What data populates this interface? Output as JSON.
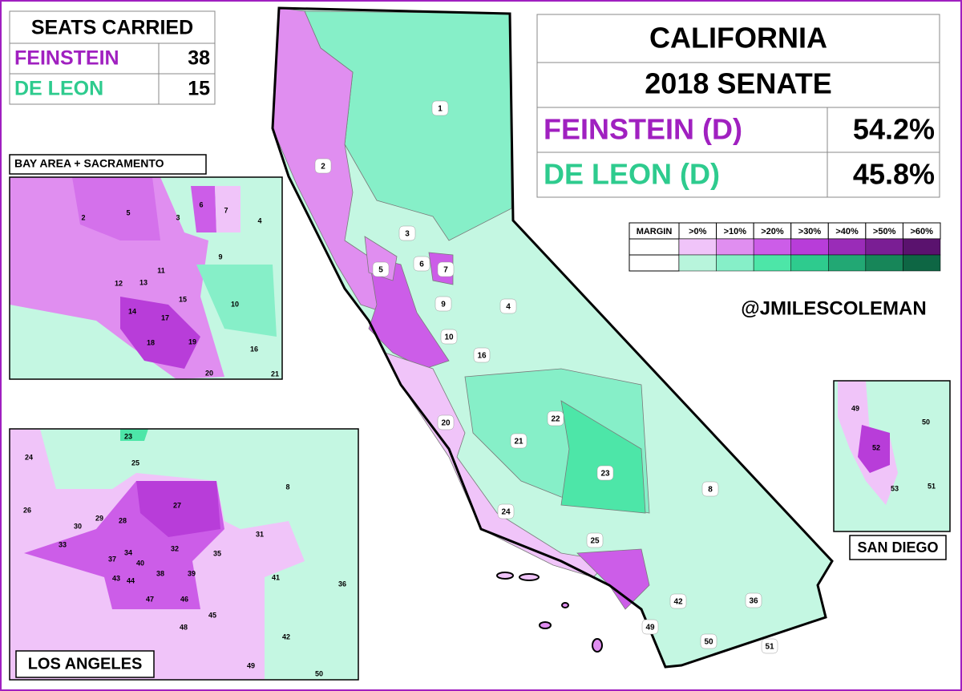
{
  "seats_table": {
    "header": "SEATS CARRIED",
    "rows": [
      [
        "FEINSTEIN",
        38
      ],
      [
        "DE LEON",
        15
      ]
    ]
  },
  "results_table": {
    "title": "CALIFORNIA",
    "subtitle": "2018 SENATE",
    "rows": [
      [
        "FEINSTEIN (D)",
        "54.2%"
      ],
      [
        "DE LEON (D)",
        "45.8%"
      ]
    ]
  },
  "legend": {
    "title": "MARGIN",
    "labels": [
      ">0%",
      ">10%",
      ">20%",
      ">30%",
      ">40%",
      ">50%",
      ">60%"
    ],
    "purple": [
      "#f0c4f9",
      "#e08ef0",
      "#cc5de8",
      "#b83dd9",
      "#9a2cb8",
      "#7a1e94",
      "#5a126e"
    ],
    "green": [
      "#b8f5dc",
      "#86efc8",
      "#4de6a8",
      "#2ecb8e",
      "#22a874",
      "#178659",
      "#0e6644"
    ]
  },
  "handle": "@JMILESCOLEMAN",
  "main_map": {
    "district_labels": [
      "1",
      "2",
      "3",
      "4",
      "5",
      "6",
      "7",
      "8",
      "9",
      "10",
      "16",
      "20",
      "21",
      "22",
      "23",
      "24",
      "25",
      "36",
      "42",
      "49",
      "50",
      "51"
    ]
  },
  "insets": [
    {
      "title": "BAY AREA + SACRAMENTO",
      "district_labels": [
        "2",
        "3",
        "4",
        "5",
        "6",
        "7",
        "9",
        "10",
        "11",
        "12",
        "13",
        "14",
        "15",
        "16",
        "17",
        "18",
        "19",
        "20",
        "21"
      ]
    },
    {
      "title": "LOS ANGELES",
      "district_labels": [
        "23",
        "24",
        "25",
        "26",
        "27",
        "28",
        "29",
        "30",
        "31",
        "32",
        "33",
        "34",
        "35",
        "36",
        "37",
        "38",
        "39",
        "40",
        "41",
        "42",
        "43",
        "44",
        "45",
        "46",
        "47",
        "48",
        "49",
        "50",
        "8"
      ]
    },
    {
      "title": "SAN DIEGO",
      "district_labels": [
        "49",
        "50",
        "52",
        "53",
        "51"
      ]
    }
  ]
}
